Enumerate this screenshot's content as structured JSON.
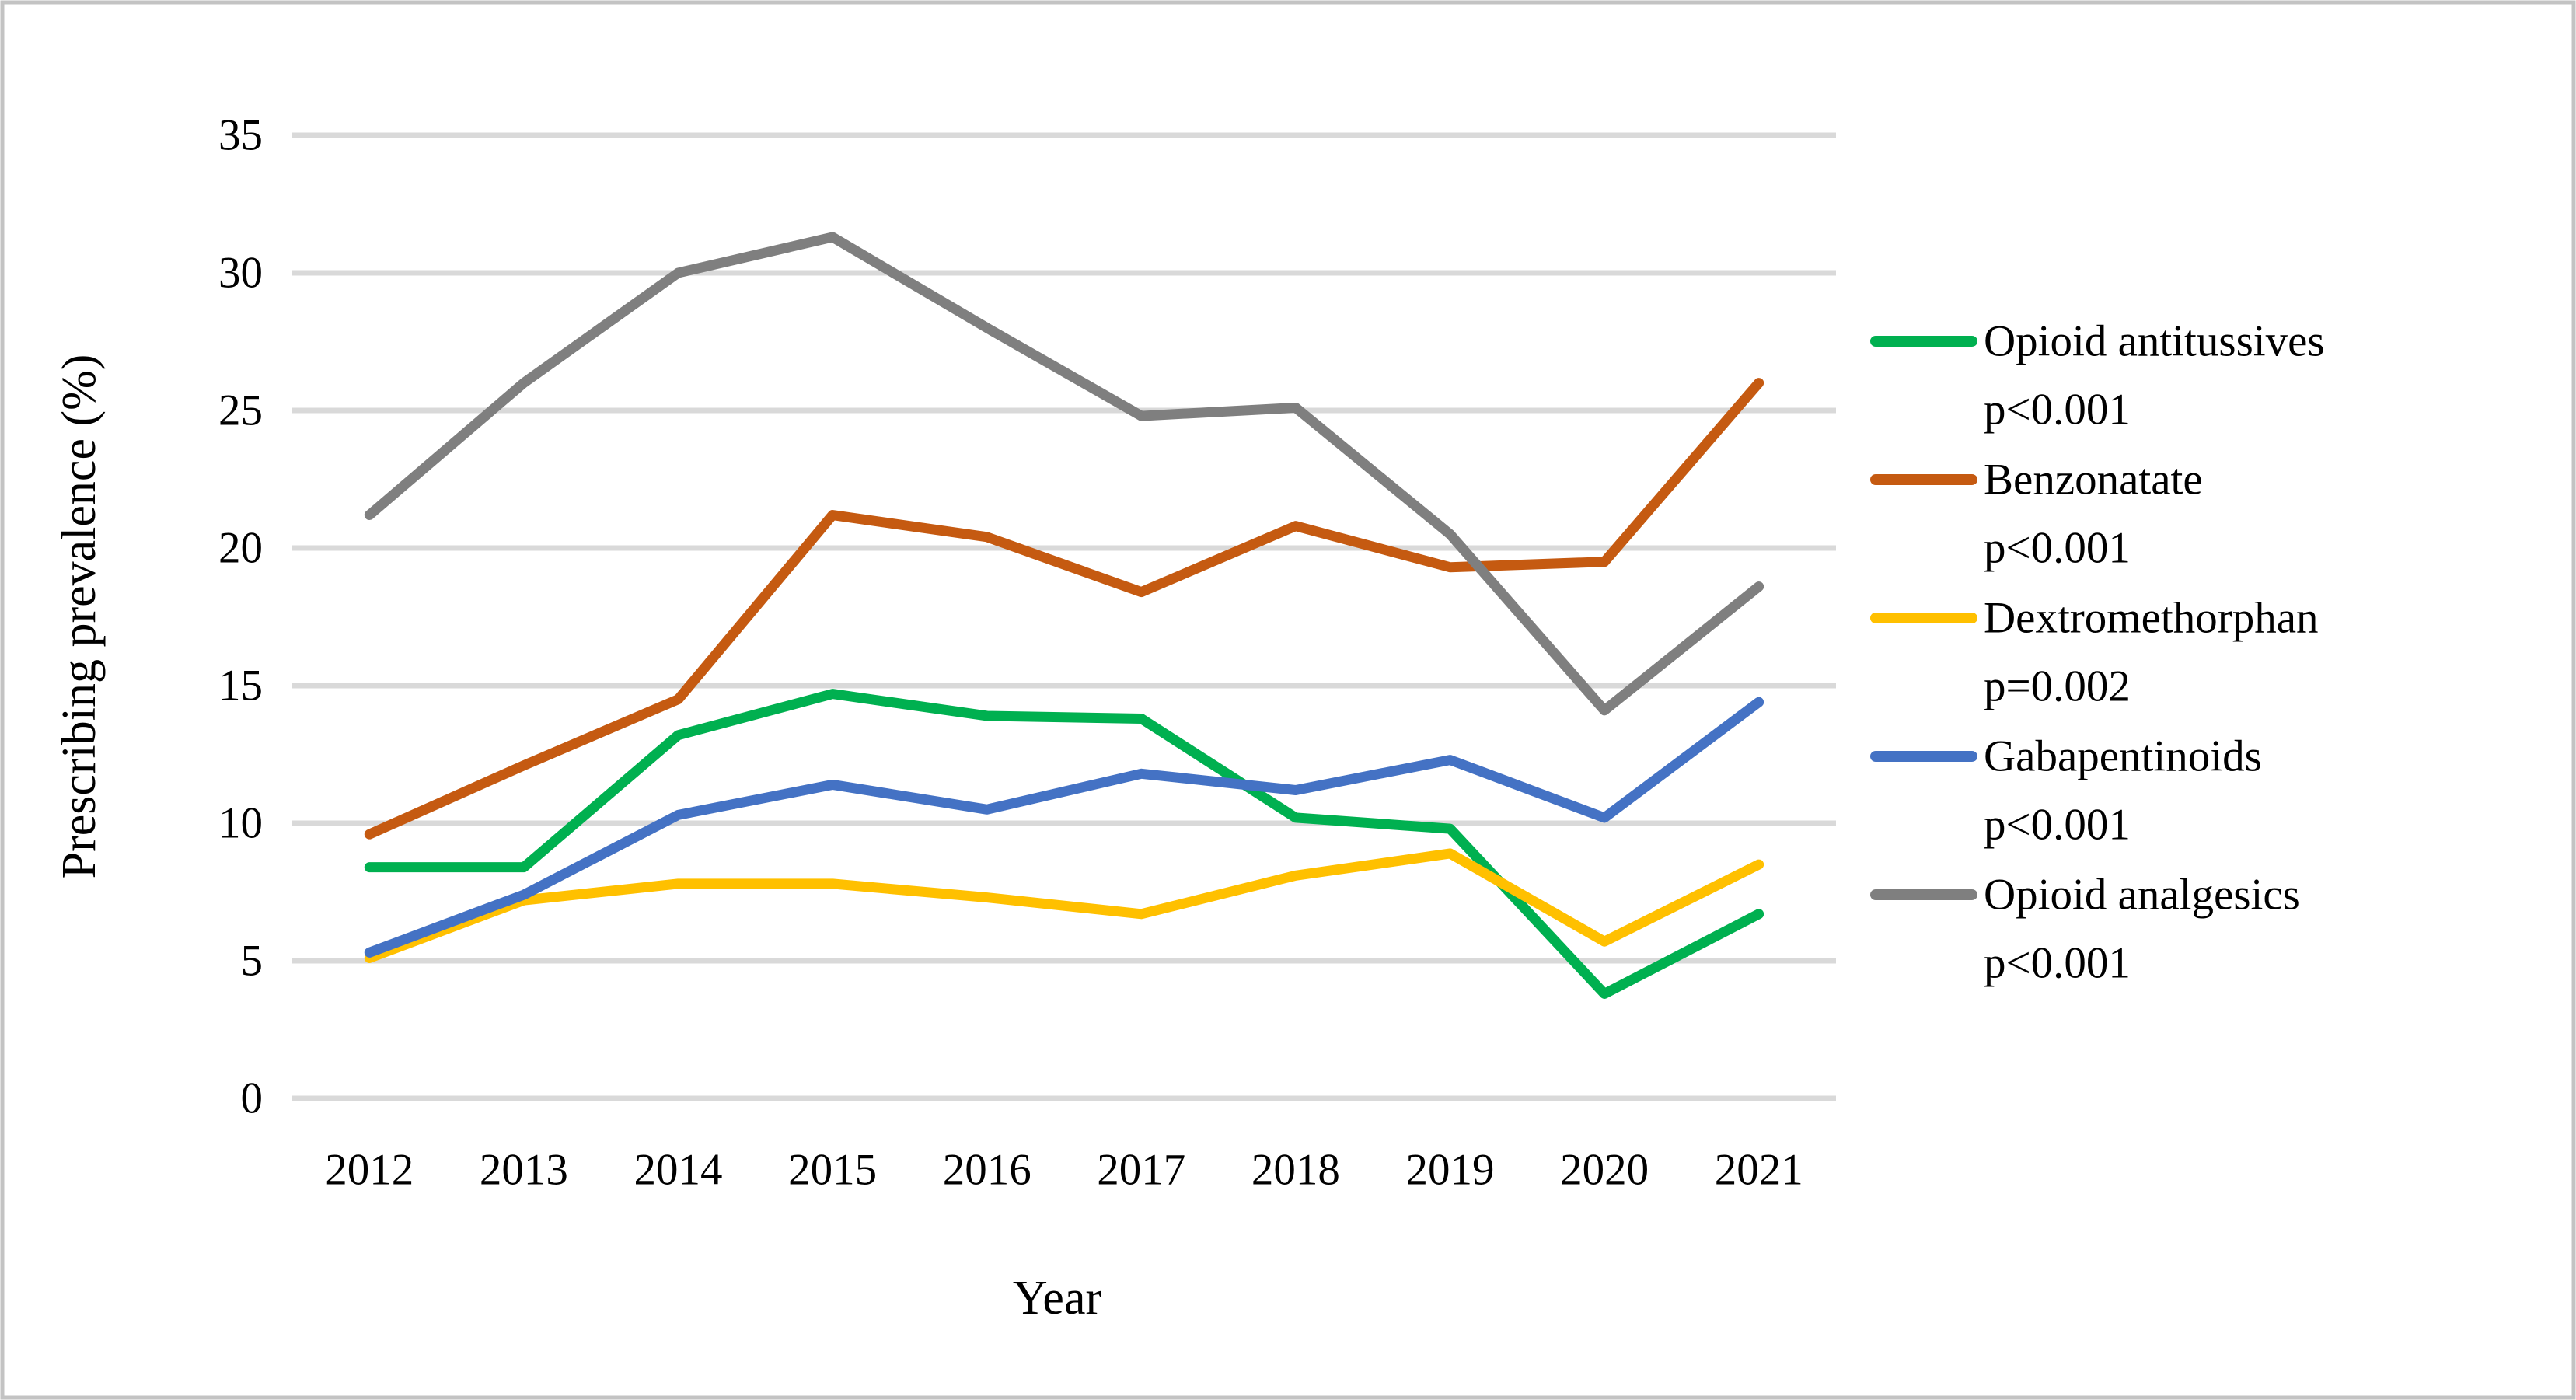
{
  "chart_data": {
    "type": "line",
    "title": "",
    "xlabel": "Year",
    "ylabel": "Prescribing prevalence (%)",
    "categories": [
      "2012",
      "2013",
      "2014",
      "2015",
      "2016",
      "2017",
      "2018",
      "2019",
      "2020",
      "2021"
    ],
    "ylim": [
      0,
      35
    ],
    "ytick_step": 5,
    "yticks": [
      0,
      5,
      10,
      15,
      20,
      25,
      30,
      35
    ],
    "grid": true,
    "legend_position": "right",
    "series": [
      {
        "name": "Opioid antitussives",
        "pvalue": "p<0.001",
        "color": "#00B050",
        "values": [
          8.4,
          8.4,
          13.2,
          14.7,
          13.9,
          13.8,
          10.2,
          9.8,
          3.8,
          6.7
        ]
      },
      {
        "name": "Benzonatate",
        "pvalue": "p<0.001",
        "color": "#C55A11",
        "values": [
          9.6,
          12.1,
          14.5,
          21.2,
          20.4,
          18.4,
          20.8,
          19.3,
          19.5,
          26.0
        ]
      },
      {
        "name": "Dextromethorphan",
        "pvalue": "p=0.002",
        "color": "#FFC000",
        "values": [
          5.1,
          7.2,
          7.8,
          7.8,
          7.3,
          6.7,
          8.1,
          8.9,
          5.7,
          8.5
        ]
      },
      {
        "name": "Gabapentinoids",
        "pvalue": "p<0.001",
        "color": "#4472C4",
        "values": [
          5.3,
          7.4,
          10.3,
          11.4,
          10.5,
          11.8,
          11.2,
          12.3,
          10.2,
          14.4
        ]
      },
      {
        "name": "Opioid analgesics",
        "pvalue": "p<0.001",
        "color": "#7F7F7F",
        "values": [
          21.2,
          26.0,
          30.0,
          31.3,
          28.0,
          24.8,
          25.1,
          20.5,
          14.1,
          18.6
        ]
      }
    ]
  },
  "colors": {
    "background": "#FFFFFF",
    "gridline": "#D9D9D9",
    "figure_border": "#C3C3C3",
    "text": "#000000"
  }
}
